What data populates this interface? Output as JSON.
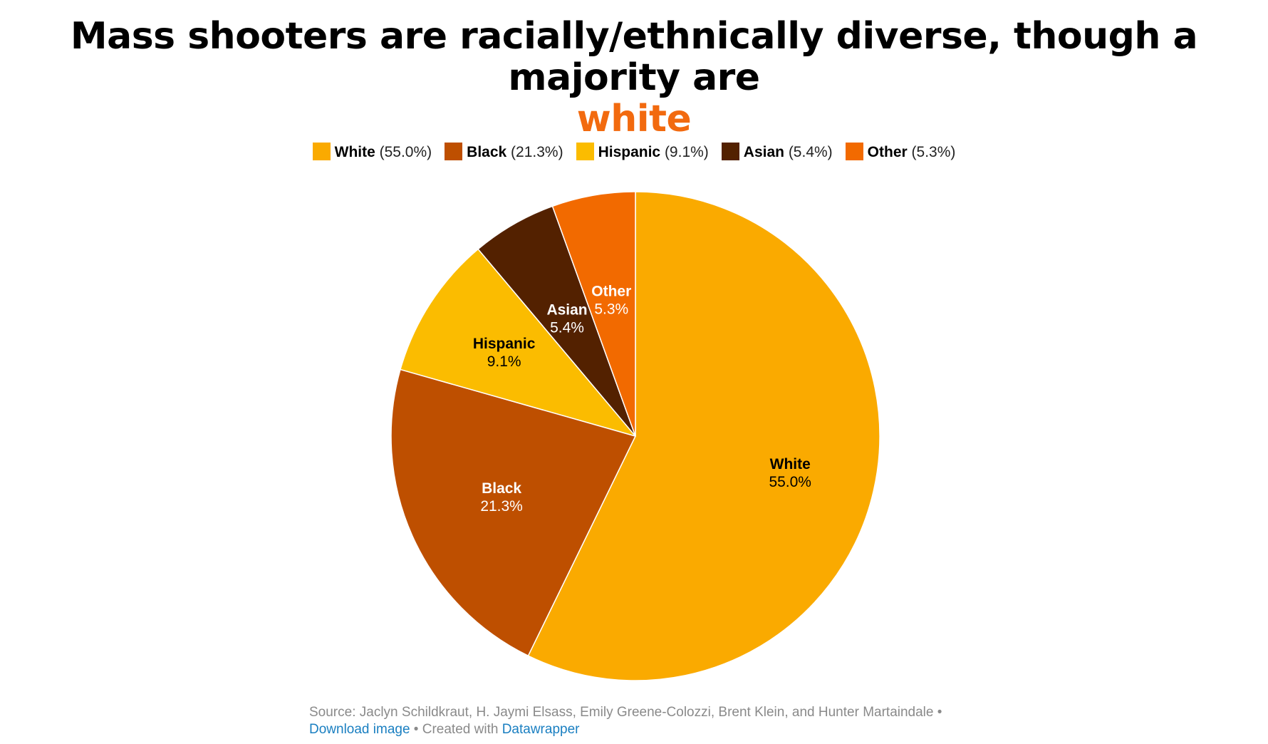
{
  "title": {
    "main": "Mass shooters are racially/ethnically diverse, though a majority are",
    "highlight": "white",
    "highlight_color": "#f26a0f"
  },
  "chart_data": {
    "type": "pie",
    "start_angle_deg": 0,
    "direction": "clockwise",
    "slices": [
      {
        "label": "White",
        "value": 55.0,
        "display": "55.0%",
        "color": "#faaa00",
        "label_color": "#000000"
      },
      {
        "label": "Black",
        "value": 21.3,
        "display": "21.3%",
        "color": "#be4f00",
        "label_color": "#ffffff"
      },
      {
        "label": "Hispanic",
        "value": 9.1,
        "display": "9.1%",
        "color": "#fbbc00",
        "label_color": "#000000"
      },
      {
        "label": "Asian",
        "value": 5.4,
        "display": "5.4%",
        "color": "#532100",
        "label_color": "#ffffff"
      },
      {
        "label": "Other",
        "value": 5.3,
        "display": "5.3%",
        "color": "#f26a00",
        "label_color": "#ffffff"
      }
    ],
    "legend": {
      "placement": "top",
      "items": [
        {
          "label": "White",
          "value": "(55.0%)",
          "color": "#faaa00"
        },
        {
          "label": "Black",
          "value": "(21.3%)",
          "color": "#be4f00"
        },
        {
          "label": "Hispanic",
          "value": "(9.1%)",
          "color": "#fbbc00"
        },
        {
          "label": "Asian",
          "value": "(5.4%)",
          "color": "#532100"
        },
        {
          "label": "Other",
          "value": "(5.3%)",
          "color": "#f26a00"
        }
      ]
    }
  },
  "footer": {
    "source_text": "Source: Jaclyn Schildkraut, H. Jaymi Elsass, Emily Greene-Colozzi, Brent Klein, and Hunter Martaindale",
    "separator": " • ",
    "download_link": "Download image",
    "created_with": "Created with",
    "datawrapper_link": "Datawrapper"
  }
}
